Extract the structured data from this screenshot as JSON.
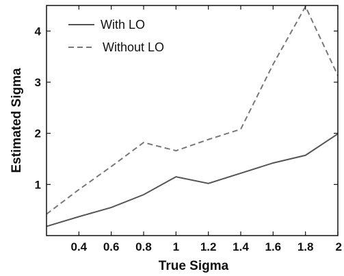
{
  "chart_data": {
    "type": "line",
    "title": "",
    "xlabel": "True Sigma",
    "ylabel": "Estimated Sigma",
    "xlim": [
      0.2,
      2.0
    ],
    "ylim": [
      0.0,
      4.5
    ],
    "x_ticks": [
      0.4,
      0.6,
      0.8,
      1.0,
      1.2,
      1.4,
      1.6,
      1.8,
      2.0
    ],
    "x_tick_labels": [
      "0.4",
      "0.6",
      "0.8",
      "1",
      "1.2",
      "1.4",
      "1.6",
      "1.8",
      "2"
    ],
    "y_ticks": [
      1,
      2,
      3,
      4
    ],
    "y_tick_labels": [
      "1",
      "2",
      "3",
      "4"
    ],
    "grid": false,
    "legend": "top-left",
    "x": [
      0.2,
      0.4,
      0.6,
      0.8,
      1.0,
      1.2,
      1.4,
      1.6,
      1.8,
      2.0
    ],
    "series": [
      {
        "name": "With LO",
        "style": "solid",
        "color": "#555555",
        "values": [
          0.18,
          0.37,
          0.55,
          0.8,
          1.15,
          1.02,
          1.22,
          1.42,
          1.57,
          1.99
        ]
      },
      {
        "name": "Without LO",
        "style": "dashed",
        "color": "#777777",
        "values": [
          0.42,
          0.9,
          1.35,
          1.82,
          1.66,
          1.88,
          2.08,
          3.35,
          4.48,
          3.13
        ]
      }
    ]
  }
}
